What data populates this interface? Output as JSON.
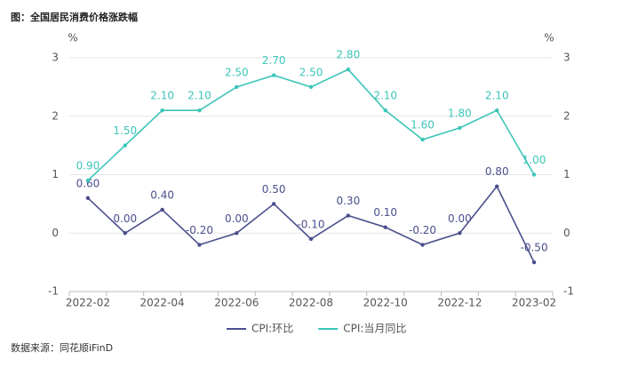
{
  "chart_data": {
    "type": "line",
    "title": "图：全国居民消费价格涨跌幅",
    "source": "数据来源：同花顺iFinD",
    "ylabel": "%",
    "y2label": "%",
    "categories": [
      "2022-02",
      null,
      "2022-04",
      null,
      "2022-06",
      null,
      "2022-08",
      null,
      "2022-10",
      null,
      "2022-12",
      null,
      "2023-02"
    ],
    "series": [
      {
        "name": "CPI:环比",
        "color": "#4a4f8c",
        "values": [
          0.6,
          0.0,
          0.4,
          -0.2,
          0.0,
          0.5,
          -0.1,
          0.3,
          0.1,
          -0.2,
          0.0,
          0.8,
          -0.5
        ],
        "value_labels": [
          "0.60",
          "0.00",
          "0.40",
          "-0.20",
          "0.00",
          "0.50",
          "-0.10",
          "0.30",
          "0.10",
          "-0.20",
          "0.00",
          "0.80",
          "-0.50"
        ]
      },
      {
        "name": "CPI:当月同比",
        "color": "#3cc5b8",
        "axis": "y2",
        "values": [
          0.9,
          1.5,
          2.1,
          2.1,
          2.5,
          2.7,
          2.5,
          2.8,
          2.1,
          1.6,
          1.8,
          2.1,
          1.0
        ],
        "value_labels": [
          "0.90",
          "1.50",
          "2.10",
          "2.10",
          "2.50",
          "2.70",
          "2.50",
          "2.80",
          "2.10",
          "1.60",
          "1.80",
          "2.10",
          "1.00"
        ]
      }
    ],
    "ylim": [
      -1,
      3
    ],
    "yticks": [
      -1,
      0,
      1,
      2,
      3
    ],
    "y2lim": [
      -1,
      3
    ],
    "y2ticks": [
      -1,
      0,
      1,
      2,
      3
    ],
    "grid": true,
    "legend": "bottom"
  }
}
